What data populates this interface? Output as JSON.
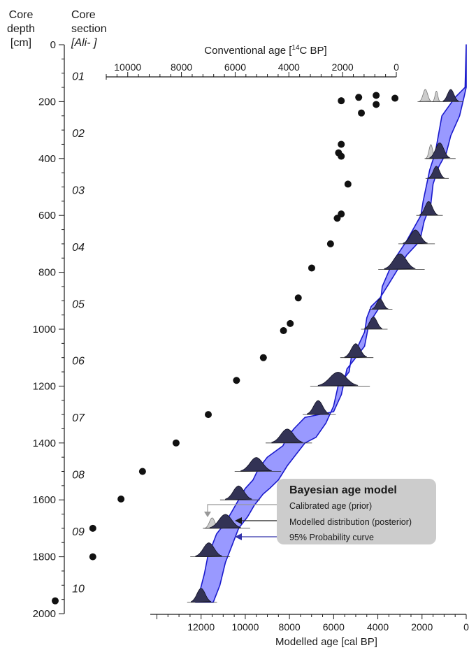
{
  "headers": {
    "depth_line1": "Core",
    "depth_line2": "depth",
    "depth_line3": "[cm]",
    "section_line1": "Core",
    "section_line2": "section",
    "section_line3": "[Ali-   ]"
  },
  "legend": {
    "title": "Bayesian age model",
    "items": [
      {
        "label": "Calibrated age (prior)",
        "color": "#999999"
      },
      {
        "label": "Modelled distribution (posterior)",
        "color": "#1a1a1a"
      },
      {
        "label": "95% Probability curve",
        "color": "#3333aa"
      }
    ]
  },
  "colors": {
    "band_fill": "#9999ff",
    "band_edge": "#1a1acc",
    "posterior_fill": "#333355",
    "prior_fill": "#cccccc",
    "dots": "#111111"
  },
  "chart_data": {
    "type": "scatter",
    "y_axis": {
      "label": "Core depth [cm]",
      "ylim": [
        2000,
        0
      ],
      "ticks": [
        0,
        200,
        400,
        600,
        800,
        1000,
        1200,
        1400,
        1600,
        1800,
        2000
      ]
    },
    "top_axis": {
      "label": "Conventional age [14C BP]",
      "label_prefix": "Conventional age [",
      "label_sup": "14",
      "label_suffix": "C BP]",
      "xlim": [
        10800,
        0
      ],
      "ticks": [
        10000,
        8000,
        6000,
        4000,
        2000,
        0
      ]
    },
    "bottom_axis": {
      "label": "Modelled age [cal BP]",
      "xlim": [
        14300,
        0
      ],
      "ticks": [
        12000,
        10000,
        8000,
        6000,
        4000,
        2000,
        0
      ]
    },
    "sections": [
      {
        "label": "01",
        "depth": 100
      },
      {
        "label": "02",
        "depth": 300
      },
      {
        "label": "03",
        "depth": 500
      },
      {
        "label": "04",
        "depth": 700
      },
      {
        "label": "05",
        "depth": 900
      },
      {
        "label": "06",
        "depth": 1100
      },
      {
        "label": "07",
        "depth": 1300
      },
      {
        "label": "08",
        "depth": 1500
      },
      {
        "label": "09",
        "depth": 1700
      },
      {
        "label": "10",
        "depth": 1900
      }
    ],
    "conventional_ages": [
      {
        "age": 2050,
        "depth": 197
      },
      {
        "age": 1400,
        "depth": 185
      },
      {
        "age": 750,
        "depth": 178
      },
      {
        "age": 750,
        "depth": 210
      },
      {
        "age": 1300,
        "depth": 240
      },
      {
        "age": 50,
        "depth": 188
      },
      {
        "age": 2050,
        "depth": 350
      },
      {
        "age": 2150,
        "depth": 380
      },
      {
        "age": 2050,
        "depth": 392
      },
      {
        "age": 1800,
        "depth": 490
      },
      {
        "age": 2050,
        "depth": 595
      },
      {
        "age": 2200,
        "depth": 610
      },
      {
        "age": 2450,
        "depth": 700
      },
      {
        "age": 3150,
        "depth": 785
      },
      {
        "age": 3650,
        "depth": 890
      },
      {
        "age": 3950,
        "depth": 980
      },
      {
        "age": 4200,
        "depth": 1005
      },
      {
        "age": 4950,
        "depth": 1100
      },
      {
        "age": 5950,
        "depth": 1180
      },
      {
        "age": 7000,
        "depth": 1300
      },
      {
        "age": 8200,
        "depth": 1400
      },
      {
        "age": 9450,
        "depth": 1500
      },
      {
        "age": 10250,
        "depth": 1597
      },
      {
        "age": 11300,
        "depth": 1700
      },
      {
        "age": 11300,
        "depth": 1800
      },
      {
        "age": 12700,
        "depth": 1955
      }
    ],
    "probability_band": {
      "left_edge": [
        {
          "age": 0,
          "depth": 0
        },
        {
          "age": 50,
          "depth": 150
        },
        {
          "age": 500,
          "depth": 185
        },
        {
          "age": 1100,
          "depth": 250
        },
        {
          "age": 1400,
          "depth": 380
        },
        {
          "age": 1650,
          "depth": 440
        },
        {
          "age": 1950,
          "depth": 550
        },
        {
          "age": 2050,
          "depth": 600
        },
        {
          "age": 2700,
          "depth": 690
        },
        {
          "age": 3300,
          "depth": 760
        },
        {
          "age": 3800,
          "depth": 850
        },
        {
          "age": 3900,
          "depth": 920
        },
        {
          "age": 4400,
          "depth": 980
        },
        {
          "age": 4600,
          "depth": 1060
        },
        {
          "age": 5400,
          "depth": 1140
        },
        {
          "age": 5650,
          "depth": 1230
        },
        {
          "age": 6000,
          "depth": 1290
        },
        {
          "age": 6650,
          "depth": 1300
        },
        {
          "age": 7300,
          "depth": 1310
        },
        {
          "age": 7800,
          "depth": 1350
        },
        {
          "age": 8100,
          "depth": 1380
        },
        {
          "age": 8300,
          "depth": 1410
        },
        {
          "age": 9000,
          "depth": 1450
        },
        {
          "age": 9400,
          "depth": 1490
        },
        {
          "age": 9650,
          "depth": 1530
        },
        {
          "age": 10000,
          "depth": 1560
        },
        {
          "age": 10300,
          "depth": 1600
        },
        {
          "age": 10600,
          "depth": 1640
        },
        {
          "age": 10900,
          "depth": 1680
        },
        {
          "age": 11300,
          "depth": 1720
        },
        {
          "age": 11500,
          "depth": 1760
        },
        {
          "age": 11700,
          "depth": 1800
        },
        {
          "age": 11850,
          "depth": 1860
        },
        {
          "age": 12050,
          "depth": 1920
        },
        {
          "age": 12250,
          "depth": 1960
        }
      ],
      "right_edge": [
        {
          "age": 11450,
          "depth": 1960
        },
        {
          "age": 11150,
          "depth": 1900
        },
        {
          "age": 10900,
          "depth": 1820
        },
        {
          "age": 10600,
          "depth": 1760
        },
        {
          "age": 10300,
          "depth": 1700
        },
        {
          "age": 9900,
          "depth": 1660
        },
        {
          "age": 9600,
          "depth": 1620
        },
        {
          "age": 9200,
          "depth": 1580
        },
        {
          "age": 8900,
          "depth": 1560
        },
        {
          "age": 8500,
          "depth": 1530
        },
        {
          "age": 8100,
          "depth": 1480
        },
        {
          "age": 7700,
          "depth": 1440
        },
        {
          "age": 7300,
          "depth": 1400
        },
        {
          "age": 6800,
          "depth": 1380
        },
        {
          "age": 6350,
          "depth": 1330
        },
        {
          "age": 6000,
          "depth": 1270
        },
        {
          "age": 5800,
          "depth": 1200
        },
        {
          "age": 5300,
          "depth": 1150
        },
        {
          "age": 5200,
          "depth": 1100
        },
        {
          "age": 4900,
          "depth": 1060
        },
        {
          "age": 4600,
          "depth": 1010
        },
        {
          "age": 4500,
          "depth": 960
        },
        {
          "age": 4300,
          "depth": 920
        },
        {
          "age": 3900,
          "depth": 890
        },
        {
          "age": 3500,
          "depth": 840
        },
        {
          "age": 3100,
          "depth": 790
        },
        {
          "age": 2700,
          "depth": 740
        },
        {
          "age": 2100,
          "depth": 690
        },
        {
          "age": 1900,
          "depth": 620
        },
        {
          "age": 1600,
          "depth": 560
        },
        {
          "age": 1500,
          "depth": 490
        },
        {
          "age": 1250,
          "depth": 430
        },
        {
          "age": 900,
          "depth": 380
        },
        {
          "age": 700,
          "depth": 320
        },
        {
          "age": 300,
          "depth": 250
        },
        {
          "age": 100,
          "depth": 185
        },
        {
          "age": 0,
          "depth": 150
        }
      ]
    },
    "posterior_distributions": [
      {
        "age": 700,
        "depth": 200,
        "half_width": 350,
        "height": 35
      },
      {
        "age": 1200,
        "depth": 400,
        "half_width": 450,
        "height": 45
      },
      {
        "age": 1350,
        "depth": 470,
        "half_width": 350,
        "height": 35
      },
      {
        "age": 1700,
        "depth": 600,
        "half_width": 400,
        "height": 40
      },
      {
        "age": 2300,
        "depth": 700,
        "half_width": 550,
        "height": 40
      },
      {
        "age": 3000,
        "depth": 790,
        "half_width": 700,
        "height": 45
      },
      {
        "age": 3900,
        "depth": 930,
        "half_width": 350,
        "height": 30
      },
      {
        "age": 4200,
        "depth": 1000,
        "half_width": 400,
        "height": 35
      },
      {
        "age": 5000,
        "depth": 1100,
        "half_width": 500,
        "height": 40
      },
      {
        "age": 5800,
        "depth": 1200,
        "half_width": 900,
        "height": 40
      },
      {
        "age": 6700,
        "depth": 1300,
        "half_width": 500,
        "height": 40
      },
      {
        "age": 8100,
        "depth": 1400,
        "half_width": 700,
        "height": 40
      },
      {
        "age": 9500,
        "depth": 1500,
        "half_width": 700,
        "height": 40
      },
      {
        "age": 10300,
        "depth": 1600,
        "half_width": 600,
        "height": 40
      },
      {
        "age": 10900,
        "depth": 1700,
        "half_width": 700,
        "height": 40
      },
      {
        "age": 11650,
        "depth": 1800,
        "half_width": 600,
        "height": 40
      },
      {
        "age": 12000,
        "depth": 1960,
        "half_width": 450,
        "height": 40
      }
    ],
    "prior_distributions": [
      {
        "age": 1850,
        "depth": 200,
        "half_width": 250,
        "height": 35
      },
      {
        "age": 1350,
        "depth": 200,
        "half_width": 150,
        "height": 30
      },
      {
        "age": 1600,
        "depth": 400,
        "half_width": 200,
        "height": 40
      },
      {
        "age": 11500,
        "depth": 1700,
        "half_width": 300,
        "height": 30
      }
    ]
  }
}
